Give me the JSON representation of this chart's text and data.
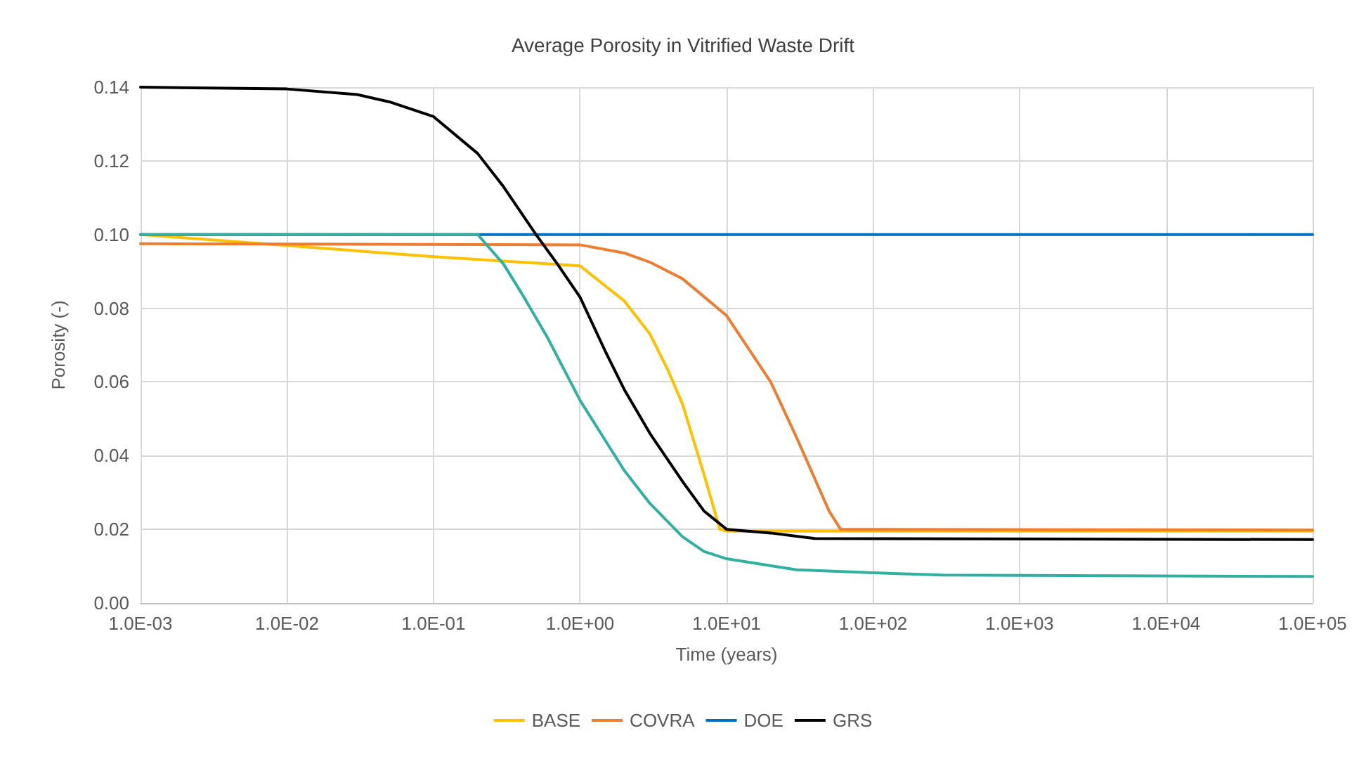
{
  "chart_data": {
    "type": "line",
    "title": "Average Porosity in Vitrified Waste Drift",
    "xlabel": "Time (years)",
    "ylabel": "Porosity (-)",
    "log": "x",
    "grid": true,
    "legend": "bottom",
    "marker": "none",
    "line_style": "solid",
    "xlim": [
      0.001,
      100000
    ],
    "xticks": [
      {
        "value": 0.001,
        "label": "1.0E-03"
      },
      {
        "value": 0.01,
        "label": "1.0E-02"
      },
      {
        "value": 0.1,
        "label": "1.0E-01"
      },
      {
        "value": 1,
        "label": "1.0E+00"
      },
      {
        "value": 10,
        "label": "1.0E+01"
      },
      {
        "value": 100,
        "label": "1.0E+02"
      },
      {
        "value": 1000,
        "label": "1.0E+03"
      },
      {
        "value": 10000,
        "label": "1.0E+04"
      },
      {
        "value": 100000,
        "label": "1.0E+05"
      }
    ],
    "ylim": [
      0,
      0.14
    ],
    "yticks": [
      {
        "value": 0,
        "label": "0.00"
      },
      {
        "value": 0.02,
        "label": "0.02"
      },
      {
        "value": 0.04,
        "label": "0.04"
      },
      {
        "value": 0.06,
        "label": "0.06"
      },
      {
        "value": 0.08,
        "label": "0.08"
      },
      {
        "value": 0.1,
        "label": "0.10"
      },
      {
        "value": 0.12,
        "label": "0.12"
      },
      {
        "value": 0.14,
        "label": "0.14"
      }
    ],
    "series": [
      {
        "name": "BASE",
        "color": "#ffc000",
        "x": [
          0.001,
          0.1,
          1,
          2,
          3,
          4,
          5,
          7,
          9,
          10,
          100000
        ],
        "values": [
          0.1,
          0.094,
          0.0915,
          0.082,
          0.073,
          0.063,
          0.054,
          0.035,
          0.02,
          0.0195,
          0.0195
        ]
      },
      {
        "name": "COVRA",
        "color": "#ed7d31",
        "x": [
          0.001,
          1,
          2,
          3,
          5,
          10,
          20,
          30,
          50,
          60,
          100000
        ],
        "values": [
          0.0975,
          0.0972,
          0.095,
          0.0925,
          0.088,
          0.078,
          0.06,
          0.045,
          0.025,
          0.02,
          0.0198
        ]
      },
      {
        "name": "DOE",
        "color": "#0070c0",
        "x": [
          0.001,
          100000
        ],
        "values": [
          0.1,
          0.1
        ]
      },
      {
        "name": "GRS",
        "color": "#000000",
        "x": [
          0.001,
          0.01,
          0.03,
          0.05,
          0.1,
          0.2,
          0.3,
          0.5,
          0.7,
          1,
          1.5,
          2,
          3,
          5,
          7,
          10,
          20,
          40,
          100000
        ],
        "values": [
          0.14,
          0.1395,
          0.138,
          0.136,
          0.132,
          0.122,
          0.113,
          0.1,
          0.092,
          0.083,
          0.068,
          0.058,
          0.046,
          0.033,
          0.025,
          0.02,
          0.019,
          0.0175,
          0.0172
        ]
      },
      {
        "color": "#31b0a0",
        "x": [
          0.001,
          0.2,
          0.3,
          0.4,
          0.6,
          1,
          2,
          3,
          5,
          7,
          10,
          30,
          100,
          300,
          1000,
          100000
        ],
        "values": [
          0.1,
          0.1,
          0.092,
          0.084,
          0.072,
          0.055,
          0.036,
          0.027,
          0.018,
          0.014,
          0.012,
          0.009,
          0.0082,
          0.0076,
          0.0075,
          0.0072
        ]
      }
    ]
  }
}
